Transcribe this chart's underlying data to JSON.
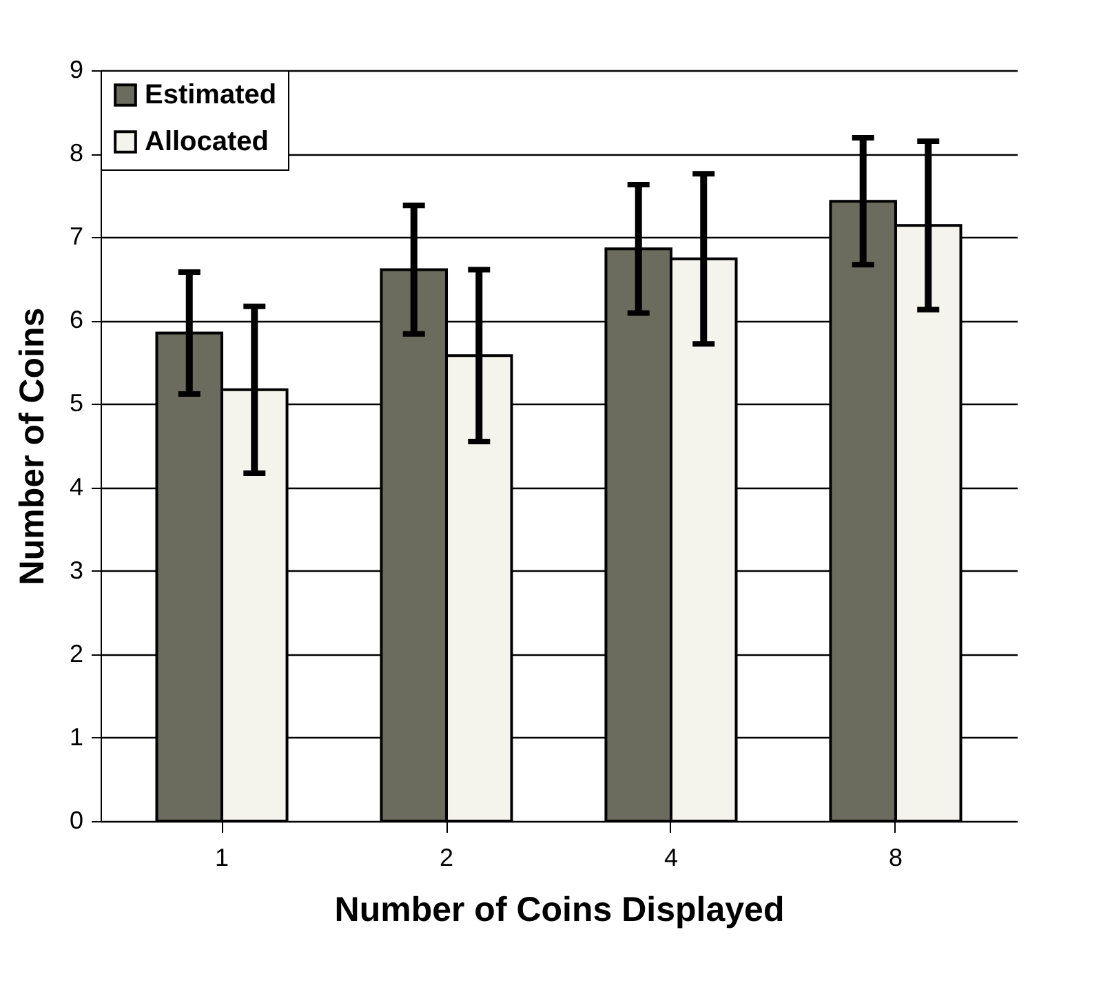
{
  "chart_data": {
    "type": "bar",
    "xlabel": "Number of Coins Displayed",
    "ylabel": "Number of Coins",
    "categories": [
      "1",
      "2",
      "4",
      "8"
    ],
    "series": [
      {
        "name": "Estimated",
        "color": "#6b6b5e",
        "values": [
          5.85,
          6.61,
          6.86,
          7.43
        ],
        "errors": [
          0.73,
          0.77,
          0.77,
          0.76
        ]
      },
      {
        "name": "Allocated",
        "color": "#f4f4ec",
        "values": [
          5.17,
          5.58,
          6.74,
          7.14
        ],
        "errors": [
          1.0,
          1.03,
          1.02,
          1.01
        ]
      }
    ],
    "ylim": [
      0,
      9
    ],
    "yticks": [
      0,
      1,
      2,
      3,
      4,
      5,
      6,
      7,
      8,
      9
    ],
    "grid": "y",
    "legend": "top left"
  }
}
